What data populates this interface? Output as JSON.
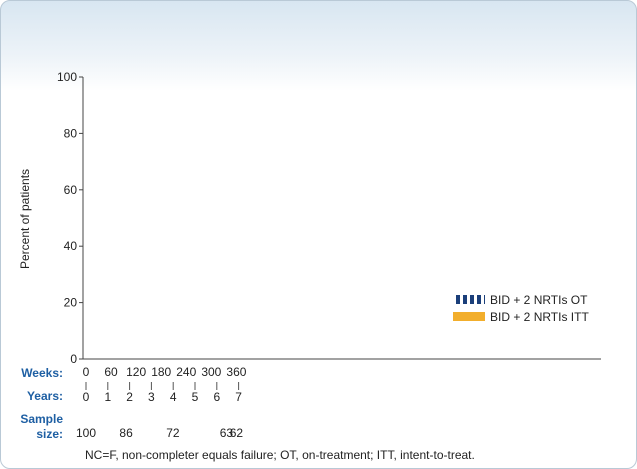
{
  "chart_data": {
    "type": "line",
    "title": "",
    "ylabel": "Percent of patients",
    "ylim": [
      0,
      100
    ],
    "y_ticks": [
      "0",
      "20",
      "40",
      "60",
      "80",
      "100"
    ],
    "weeks_label": "Weeks:",
    "weeks": [
      "0",
      "60",
      "120",
      "180",
      "240",
      "300",
      "360"
    ],
    "years_label": "Years:",
    "years": [
      "0",
      "1",
      "2",
      "3",
      "4",
      "5",
      "6",
      "7"
    ],
    "sample_size_label_line1": "Sample",
    "sample_size_label_line2": "size:",
    "sample_sizes": [
      {
        "label": "100",
        "week": 0
      },
      {
        "label": "86",
        "week": 96
      },
      {
        "label": "72",
        "week": 208
      },
      {
        "label": "63",
        "week": 336
      },
      {
        "label": "62",
        "week": 360
      }
    ],
    "legend": [
      {
        "name": "BID + 2 NRTIs OT",
        "style": "striped",
        "color": "#1b3f7a"
      },
      {
        "name": "BID + 2 NRTIs ITT",
        "style": "solid",
        "color": "#f2ae2c"
      }
    ],
    "series": [
      {
        "name": "BID + 2 NRTIs OT",
        "values": []
      },
      {
        "name": "BID + 2 NRTIs ITT",
        "values": []
      }
    ],
    "footnote": "NC=F, non-completer equals failure; OT, on-treatment; ITT, intent-to-treat."
  }
}
